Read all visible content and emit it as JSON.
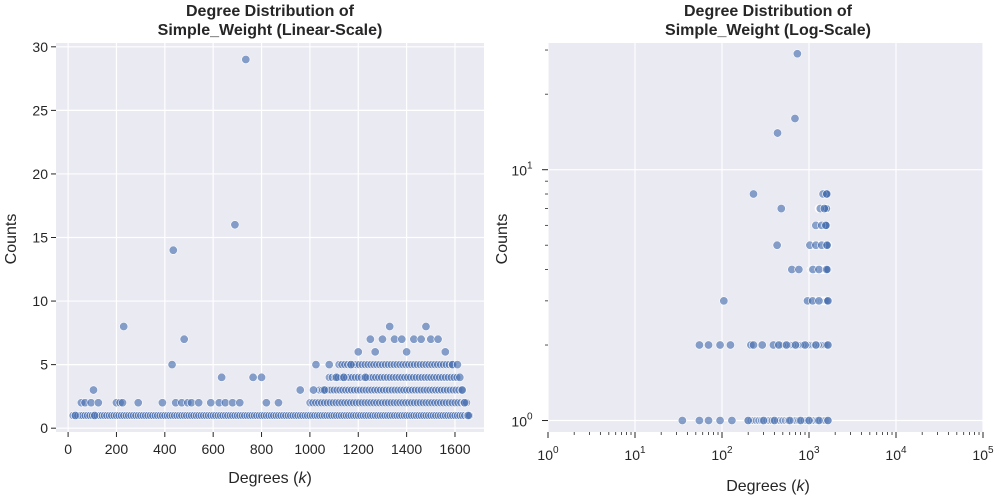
{
  "chart_data": [
    {
      "type": "scatter",
      "title": [
        "Degree Distribution of",
        "Simple_Weight (Linear-Scale)"
      ],
      "xlabel": "Degrees (k)",
      "ylabel": "Counts",
      "xlim": [
        -50,
        1720
      ],
      "ylim": [
        -0.3,
        30.3
      ],
      "xticks": [
        0,
        200,
        400,
        600,
        800,
        1000,
        1200,
        1400,
        1600
      ],
      "xticklabels": [
        "0",
        "200",
        "400",
        "600",
        "800",
        "1000",
        "1200",
        "1400",
        "1600"
      ],
      "yticks": [
        0,
        5,
        10,
        15,
        20,
        25,
        30
      ],
      "yticklabels": [
        "0",
        "5",
        "10",
        "15",
        "20",
        "25",
        "30"
      ],
      "grid": true,
      "marker_color": "#4c72b0",
      "points": [
        [
          30,
          1
        ],
        [
          55,
          2
        ],
        [
          70,
          2
        ],
        [
          95,
          2
        ],
        [
          105,
          3
        ],
        [
          110,
          1
        ],
        [
          125,
          2
        ],
        [
          200,
          2
        ],
        [
          215,
          2
        ],
        [
          225,
          2
        ],
        [
          230,
          8
        ],
        [
          290,
          2
        ],
        [
          390,
          2
        ],
        [
          430,
          5
        ],
        [
          435,
          14
        ],
        [
          445,
          2
        ],
        [
          470,
          2
        ],
        [
          480,
          7
        ],
        [
          495,
          2
        ],
        [
          510,
          2
        ],
        [
          540,
          2
        ],
        [
          590,
          2
        ],
        [
          625,
          2
        ],
        [
          635,
          4
        ],
        [
          650,
          2
        ],
        [
          680,
          2
        ],
        [
          690,
          16
        ],
        [
          710,
          2
        ],
        [
          735,
          29
        ],
        [
          765,
          4
        ],
        [
          800,
          4
        ],
        [
          820,
          2
        ],
        [
          870,
          2
        ],
        [
          960,
          3
        ],
        [
          1015,
          3
        ],
        [
          1025,
          5
        ],
        [
          1060,
          3
        ],
        [
          1080,
          5
        ],
        [
          1110,
          4
        ],
        [
          1140,
          4
        ],
        [
          1170,
          5
        ],
        [
          1200,
          6
        ],
        [
          1230,
          4
        ],
        [
          1250,
          7
        ],
        [
          1270,
          6
        ],
        [
          1300,
          7
        ],
        [
          1330,
          8
        ],
        [
          1350,
          7
        ],
        [
          1380,
          7
        ],
        [
          1400,
          6
        ],
        [
          1430,
          7
        ],
        [
          1460,
          7
        ],
        [
          1480,
          8
        ],
        [
          1500,
          7
        ],
        [
          1530,
          7
        ],
        [
          1560,
          6
        ],
        [
          1590,
          5
        ],
        [
          1610,
          5
        ],
        [
          1620,
          4
        ],
        [
          1630,
          3
        ],
        [
          1640,
          2
        ],
        [
          1655,
          1
        ]
      ]
    },
    {
      "type": "scatter",
      "title": [
        "Degree Distribution of",
        "Simple_Weight (Log-Scale)"
      ],
      "xlabel": "Degrees (k)",
      "ylabel": "Counts",
      "xscale": "log",
      "yscale": "log",
      "xlim": [
        1,
        100000
      ],
      "ylim": [
        0.9,
        32
      ],
      "xtick_base": "10",
      "xtick_exponents": [
        "0",
        "1",
        "2",
        "3",
        "4",
        "5"
      ],
      "ytick_base": "10",
      "ytick_exponents": [
        "0",
        "1"
      ],
      "grid": true,
      "marker_color": "#4c72b0",
      "points": [
        [
          35,
          1
        ],
        [
          55,
          1
        ],
        [
          70,
          1
        ],
        [
          95,
          1
        ],
        [
          130,
          1
        ],
        [
          200,
          1
        ],
        [
          300,
          1
        ],
        [
          400,
          1
        ],
        [
          600,
          1
        ],
        [
          800,
          1
        ],
        [
          1000,
          1
        ],
        [
          1300,
          1
        ],
        [
          1650,
          1
        ],
        [
          55,
          2
        ],
        [
          70,
          2
        ],
        [
          95,
          2
        ],
        [
          125,
          2
        ],
        [
          215,
          2
        ],
        [
          230,
          2
        ],
        [
          290,
          2
        ],
        [
          390,
          2
        ],
        [
          450,
          2
        ],
        [
          550,
          2
        ],
        [
          700,
          2
        ],
        [
          900,
          2
        ],
        [
          1200,
          2
        ],
        [
          1650,
          2
        ],
        [
          105,
          3
        ],
        [
          960,
          3
        ],
        [
          1100,
          3
        ],
        [
          1300,
          3
        ],
        [
          1650,
          3
        ],
        [
          635,
          4
        ],
        [
          765,
          4
        ],
        [
          1110,
          4
        ],
        [
          1300,
          4
        ],
        [
          1600,
          4
        ],
        [
          430,
          5
        ],
        [
          1025,
          5
        ],
        [
          1200,
          5
        ],
        [
          1400,
          5
        ],
        [
          1610,
          5
        ],
        [
          1200,
          6
        ],
        [
          1400,
          6
        ],
        [
          1560,
          6
        ],
        [
          480,
          7
        ],
        [
          1350,
          7
        ],
        [
          1500,
          7
        ],
        [
          230,
          8
        ],
        [
          1450,
          8
        ],
        [
          1600,
          8
        ],
        [
          435,
          14
        ],
        [
          690,
          16
        ],
        [
          735,
          29
        ]
      ]
    }
  ]
}
